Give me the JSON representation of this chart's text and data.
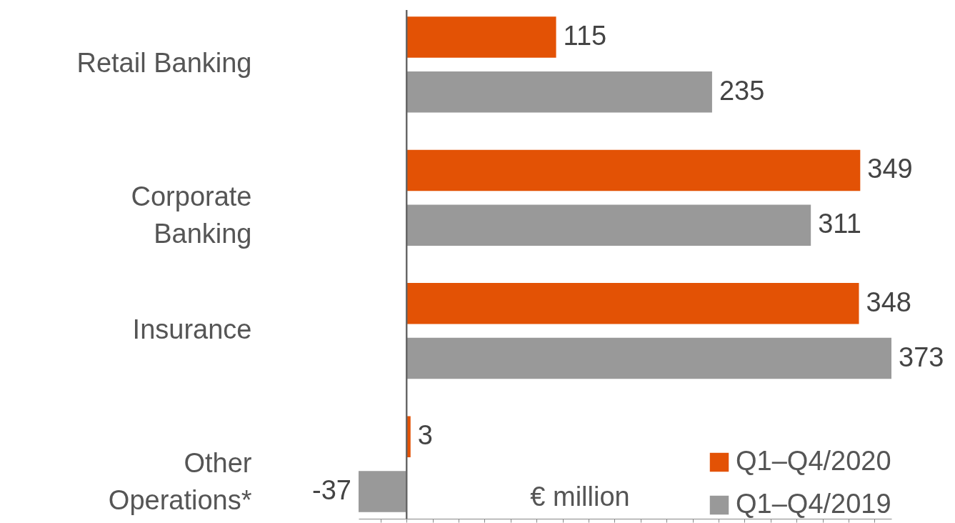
{
  "chart_data": {
    "type": "bar",
    "orientation": "horizontal",
    "categories": [
      "Retail Banking",
      "Corporate Banking",
      "Insurance",
      "Other Operations*"
    ],
    "series": [
      {
        "name": "Q1–Q4/2020",
        "color": "#e35205",
        "values": [
          115,
          349,
          348,
          3
        ]
      },
      {
        "name": "Q1–Q4/2019",
        "color": "#999999",
        "values": [
          235,
          311,
          373,
          -37
        ]
      }
    ],
    "data_labels": true,
    "legend": "bottom right",
    "annotations": [
      "€ million"
    ]
  }
}
